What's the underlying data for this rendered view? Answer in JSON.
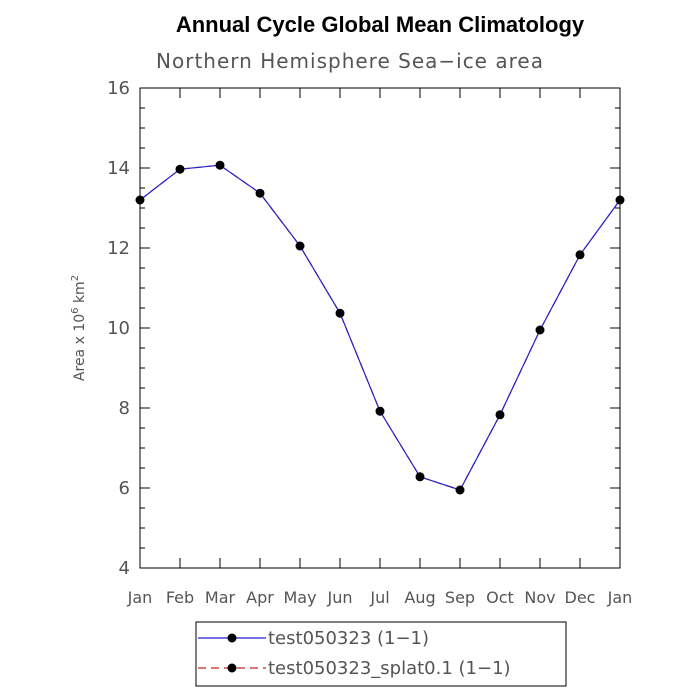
{
  "chart_data": {
    "type": "line",
    "title": "Annual Cycle Global Mean Climatology",
    "subtitle": "Northern Hemisphere Sea−ice area",
    "ylabel": "Area x 10",
    "ylabel_sup1": "6",
    "ylabel_unit": " km",
    "ylabel_sup2": "2",
    "categories": [
      "Jan",
      "Feb",
      "Mar",
      "Apr",
      "May",
      "Jun",
      "Jul",
      "Aug",
      "Sep",
      "Oct",
      "Nov",
      "Dec",
      "Jan"
    ],
    "ylim": [
      4,
      16
    ],
    "yticks": [
      4,
      6,
      8,
      10,
      12,
      14,
      16
    ],
    "series": [
      {
        "name": "test050323 (1−1)",
        "color": "#2222cc",
        "dash": "solid",
        "values": [
          13.2,
          13.97,
          14.07,
          13.37,
          12.05,
          10.37,
          7.92,
          6.28,
          5.95,
          7.83,
          9.95,
          11.83,
          13.2
        ]
      },
      {
        "name": "test050323_splat0.1 (1−1)",
        "color": "#cc2222",
        "dash": "dashed",
        "values": [
          13.2,
          13.97,
          14.07,
          13.37,
          12.05,
          10.37,
          7.92,
          6.28,
          5.95,
          7.83,
          9.95,
          11.83,
          13.2
        ]
      }
    ],
    "legend_position": "bottom-center",
    "marker_color": "#000000"
  }
}
